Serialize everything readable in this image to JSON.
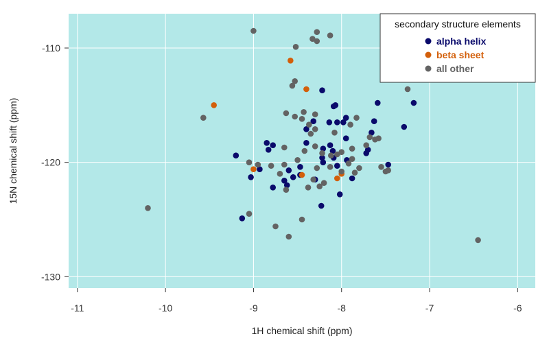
{
  "chart_data": {
    "type": "scatter",
    "xlabel": "1H chemical shift (ppm)",
    "ylabel": "15N chemical shift (ppm)",
    "xlim": [
      -11.1,
      -5.8
    ],
    "ylim": [
      -131,
      -107
    ],
    "x_ticks": [
      -11,
      -10,
      -9,
      -8,
      -7,
      -6
    ],
    "y_ticks": [
      -110,
      -120,
      -130
    ],
    "x_axis_reversed": false,
    "y_axis_reversed": true,
    "grid": true,
    "plot_background": "#b3e8e8",
    "legend": {
      "title": "secondary structure elements",
      "placement": "top-right"
    },
    "series": [
      {
        "name": "alpha helix",
        "color": "#0a0a6b",
        "points": [
          [
            -8.22,
            -113.7
          ],
          [
            -8.07,
            -115.0
          ],
          [
            -8.09,
            -115.1
          ],
          [
            -7.95,
            -116.1
          ],
          [
            -7.98,
            -116.5
          ],
          [
            -8.05,
            -116.5
          ],
          [
            -8.14,
            -116.5
          ],
          [
            -8.32,
            -116.4
          ],
          [
            -8.4,
            -117.1
          ],
          [
            -7.59,
            -114.8
          ],
          [
            -7.18,
            -114.8
          ],
          [
            -7.29,
            -116.9
          ],
          [
            -7.63,
            -116.4
          ],
          [
            -7.66,
            -117.4
          ],
          [
            -7.95,
            -117.9
          ],
          [
            -8.13,
            -118.5
          ],
          [
            -8.85,
            -118.3
          ],
          [
            -8.78,
            -118.5
          ],
          [
            -8.4,
            -118.3
          ],
          [
            -8.21,
            -118.8
          ],
          [
            -8.1,
            -119.0
          ],
          [
            -7.72,
            -119.2
          ],
          [
            -7.7,
            -118.9
          ],
          [
            -8.83,
            -118.9
          ],
          [
            -9.2,
            -119.4
          ],
          [
            -8.22,
            -119.6
          ],
          [
            -8.09,
            -119.6
          ],
          [
            -7.94,
            -119.8
          ],
          [
            -8.21,
            -120.0
          ],
          [
            -8.05,
            -120.3
          ],
          [
            -8.47,
            -120.4
          ],
          [
            -8.6,
            -120.7
          ],
          [
            -7.47,
            -120.2
          ],
          [
            -8.93,
            -120.6
          ],
          [
            -9.03,
            -121.3
          ],
          [
            -7.88,
            -121.4
          ],
          [
            -8.55,
            -121.3
          ],
          [
            -8.65,
            -121.6
          ],
          [
            -8.78,
            -122.2
          ],
          [
            -8.62,
            -122.0
          ],
          [
            -8.47,
            -121.1
          ],
          [
            -8.3,
            -121.5
          ],
          [
            -8.02,
            -122.8
          ],
          [
            -8.23,
            -123.8
          ],
          [
            -9.13,
            -124.9
          ]
        ]
      },
      {
        "name": "beta sheet",
        "color": "#d35f0a",
        "points": [
          [
            -8.58,
            -111.1
          ],
          [
            -8.4,
            -113.6
          ],
          [
            -9.45,
            -115.0
          ],
          [
            -9.0,
            -120.6
          ],
          [
            -8.45,
            -121.1
          ],
          [
            -8.05,
            -121.4
          ],
          [
            -8.0,
            -121.0
          ]
        ]
      },
      {
        "name": "all other",
        "color": "#636363",
        "points": [
          [
            -9.0,
            -108.5
          ],
          [
            -8.28,
            -108.6
          ],
          [
            -8.13,
            -108.9
          ],
          [
            -8.33,
            -109.2
          ],
          [
            -8.28,
            -109.4
          ],
          [
            -8.52,
            -109.9
          ],
          [
            -8.56,
            -113.3
          ],
          [
            -8.53,
            -112.9
          ],
          [
            -7.25,
            -113.6
          ],
          [
            -9.57,
            -116.1
          ],
          [
            -8.63,
            -115.7
          ],
          [
            -8.43,
            -115.6
          ],
          [
            -8.3,
            -115.8
          ],
          [
            -8.53,
            -116.0
          ],
          [
            -8.45,
            -116.2
          ],
          [
            -8.37,
            -116.7
          ],
          [
            -7.83,
            -116.1
          ],
          [
            -8.3,
            -117.1
          ],
          [
            -7.9,
            -116.7
          ],
          [
            -8.08,
            -117.4
          ],
          [
            -8.35,
            -117.5
          ],
          [
            -7.68,
            -117.8
          ],
          [
            -7.62,
            -118.0
          ],
          [
            -7.88,
            -118.8
          ],
          [
            -7.72,
            -118.5
          ],
          [
            -8.65,
            -118.7
          ],
          [
            -8.3,
            -118.6
          ],
          [
            -7.58,
            -117.9
          ],
          [
            -8.22,
            -119.2
          ],
          [
            -8.12,
            -119.4
          ],
          [
            -8.05,
            -119.3
          ],
          [
            -8.0,
            -119.1
          ],
          [
            -7.88,
            -119.7
          ],
          [
            -8.5,
            -119.8
          ],
          [
            -9.05,
            -120.0
          ],
          [
            -8.95,
            -120.2
          ],
          [
            -8.8,
            -120.3
          ],
          [
            -8.65,
            -120.2
          ],
          [
            -8.28,
            -120.5
          ],
          [
            -8.13,
            -120.4
          ],
          [
            -7.8,
            -120.5
          ],
          [
            -7.55,
            -120.4
          ],
          [
            -7.47,
            -120.7
          ],
          [
            -7.5,
            -120.8
          ],
          [
            -8.32,
            -121.5
          ],
          [
            -8.25,
            -122.1
          ],
          [
            -8.38,
            -122.2
          ],
          [
            -8.63,
            -122.4
          ],
          [
            -10.2,
            -124.0
          ],
          [
            -9.05,
            -124.5
          ],
          [
            -8.45,
            -125.0
          ],
          [
            -8.75,
            -125.6
          ],
          [
            -8.6,
            -126.5
          ],
          [
            -6.45,
            -126.8
          ],
          [
            -8.0,
            -120.8
          ],
          [
            -8.42,
            -119.0
          ],
          [
            -7.92,
            -120.1
          ],
          [
            -7.85,
            -120.9
          ],
          [
            -8.7,
            -121.0
          ],
          [
            -8.2,
            -121.8
          ]
        ]
      }
    ]
  }
}
